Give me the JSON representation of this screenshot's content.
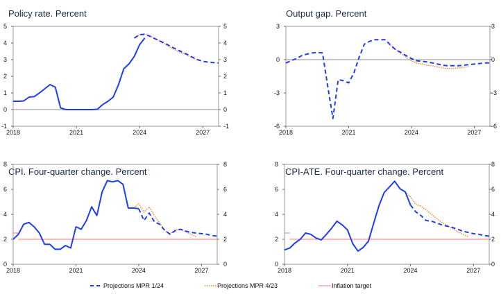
{
  "colors": {
    "mpr124": "#1f3cf5",
    "mpr423": "#f08a2c",
    "target": "#ff6e6e",
    "zero": "#888888"
  },
  "legend": {
    "mpr124": "Projections MPR 1/24",
    "mpr423": "Projections MPR 4/23",
    "target": "Inflation target"
  },
  "chart_data": [
    {
      "type": "line",
      "title": "Policy rate. Percent",
      "x_start": 2018.0,
      "x_step": 0.25,
      "xlim": [
        2018,
        2027.75
      ],
      "xticks": [
        "2018",
        "2021",
        "2024",
        "2027"
      ],
      "ylim": [
        -1,
        5
      ],
      "yticks": [
        "-1",
        "0",
        "1",
        "2",
        "3",
        "4",
        "5"
      ],
      "zero_line": true,
      "target": false,
      "actual": {
        "start": 2018.0,
        "values": [
          0.5,
          0.5,
          0.52,
          0.75,
          0.78,
          1.0,
          1.25,
          1.5,
          1.35,
          0.1,
          0,
          0,
          0,
          0,
          0,
          0,
          0.02,
          0.3,
          0.5,
          0.75,
          1.5,
          2.45,
          2.75,
          3.2,
          3.9,
          4.3
        ]
      },
      "mpr124": {
        "start": 2023.75,
        "values": [
          4.3,
          4.5,
          4.52,
          4.4,
          4.25,
          4.1,
          3.95,
          3.78,
          3.62,
          3.47,
          3.32,
          3.15,
          3.0,
          2.9,
          2.85,
          2.82,
          2.8
        ]
      },
      "mpr423": {
        "start": 2023.75,
        "values": [
          4.3,
          4.5,
          4.55,
          4.42,
          4.25,
          4.08,
          3.9,
          3.72,
          3.55,
          3.4,
          3.27,
          3.12,
          2.97
        ]
      }
    },
    {
      "type": "line",
      "title": "Output gap. Percent",
      "xlim": [
        2018,
        2027.75
      ],
      "xticks": [
        "2018",
        "2021",
        "2024",
        "2027"
      ],
      "ylim": [
        -6,
        3
      ],
      "yticks": [
        "-6",
        "-3",
        "0",
        "3"
      ],
      "zero_line": true,
      "target": false,
      "actual": null,
      "mpr124": {
        "start": 2018.0,
        "values": [
          -0.3,
          -0.1,
          0.1,
          0.35,
          0.5,
          0.6,
          0.65,
          0.6,
          -2.4,
          -5.3,
          -1.8,
          -1.9,
          -2.1,
          -1.2,
          0.2,
          1.4,
          1.65,
          1.8,
          1.8,
          1.8,
          1.3,
          0.9,
          0.65,
          0.35,
          0.1,
          -0.1,
          -0.15,
          -0.2,
          -0.3,
          -0.4,
          -0.5,
          -0.55,
          -0.55,
          -0.55,
          -0.5,
          -0.45,
          -0.4,
          -0.35,
          -0.3,
          -0.3
        ]
      },
      "mpr423": {
        "start": 2023.0,
        "values": [
          1.3,
          0.9,
          0.55,
          0.2,
          -0.1,
          -0.3,
          -0.4,
          -0.5,
          -0.55,
          -0.65,
          -0.75,
          -0.8,
          -0.8,
          -0.75,
          -0.7,
          -0.6
        ]
      }
    },
    {
      "type": "line",
      "title": "CPI. Four-quarter change. Percent",
      "xlim": [
        2018,
        2027.75
      ],
      "xticks": [
        "2018",
        "2021",
        "2024",
        "2027"
      ],
      "ylim": [
        0,
        8
      ],
      "yticks": [
        "0",
        "2",
        "4",
        "6",
        "8"
      ],
      "zero_line": false,
      "target": true,
      "actual": {
        "start": 2018.0,
        "values": [
          2.0,
          2.4,
          3.2,
          3.35,
          3.0,
          2.5,
          1.6,
          1.6,
          1.2,
          1.2,
          1.5,
          1.3,
          3.0,
          2.8,
          3.5,
          4.6,
          3.9,
          5.8,
          6.7,
          6.6,
          6.7,
          6.4,
          4.5,
          4.5,
          4.45
        ]
      },
      "mpr124": {
        "start": 2024.0,
        "values": [
          4.45,
          3.5,
          4.1,
          3.4,
          3.2,
          2.7,
          2.4,
          2.7,
          2.8,
          2.65,
          2.55,
          2.5,
          2.45,
          2.4,
          2.3,
          2.25
        ]
      },
      "mpr423": {
        "start": 2023.75,
        "values": [
          4.5,
          4.85,
          4.15,
          4.6,
          3.9,
          3.3,
          2.7,
          2.45,
          2.75,
          2.8,
          2.6,
          2.4,
          2.2
        ]
      }
    },
    {
      "type": "line",
      "title": "CPI-ATE. Four-quarter change. Percent",
      "xlim": [
        2018,
        2027.75
      ],
      "xticks": [
        "2018",
        "2021",
        "2024",
        "2027"
      ],
      "ylim": [
        0,
        8
      ],
      "yticks": [
        "0",
        "2",
        "4",
        "6",
        "8"
      ],
      "zero_line": false,
      "target": true,
      "actual": {
        "start": 2018.0,
        "values": [
          1.15,
          1.3,
          1.7,
          2.0,
          2.5,
          2.4,
          2.1,
          1.95,
          2.4,
          2.9,
          3.45,
          3.15,
          2.75,
          1.65,
          1.05,
          1.35,
          1.85,
          3.3,
          4.7,
          5.75,
          6.2,
          6.65,
          6.05,
          5.8,
          4.75
        ]
      },
      "mpr124": {
        "start": 2024.0,
        "values": [
          4.75,
          4.2,
          3.9,
          3.5,
          3.45,
          3.3,
          3.15,
          3.05,
          2.95,
          2.8,
          2.65,
          2.55,
          2.45,
          2.4,
          2.3,
          2.25
        ]
      },
      "mpr423": {
        "start": 2023.75,
        "values": [
          5.8,
          5.4,
          4.8,
          4.65,
          4.35,
          4.0,
          3.65,
          3.35,
          3.1,
          2.85,
          2.6,
          2.4,
          2.2
        ]
      }
    }
  ],
  "inflation_target": {
    "segments": [
      {
        "from": 2018.0,
        "to": 2018.25,
        "value": 2.5
      },
      {
        "from": 2018.25,
        "to": 2027.75,
        "value": 2.0
      }
    ]
  }
}
